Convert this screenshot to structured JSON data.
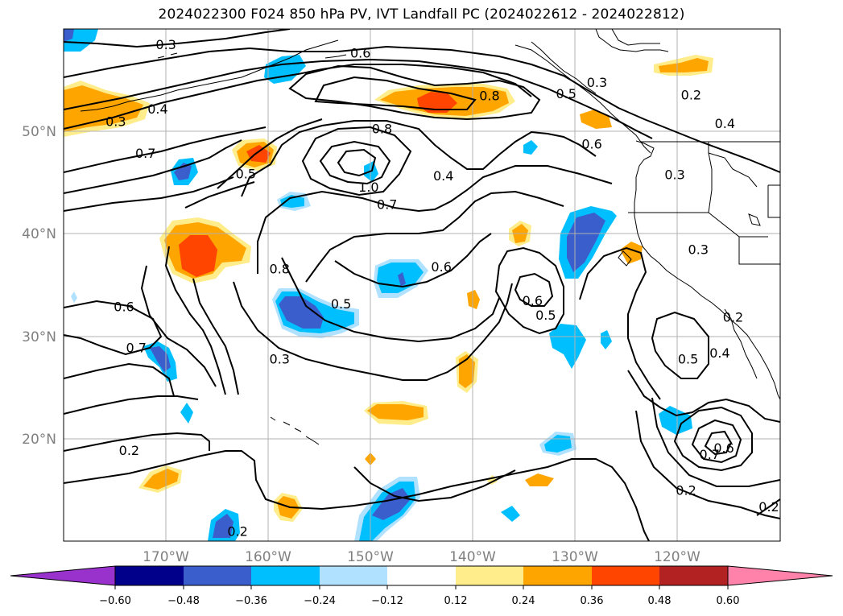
{
  "title": "2024022300 F024 850 hPa PV, IVT Landfall PC (2024022612 - 2024022812)",
  "map": {
    "lon_range": [
      -180,
      -110
    ],
    "lat_range": [
      10,
      60
    ],
    "lon_ticks": [
      "170°W",
      "160°W",
      "150°W",
      "140°W",
      "130°W",
      "120°W"
    ],
    "lat_ticks": [
      "50°N",
      "40°N",
      "30°N",
      "20°N"
    ],
    "grid": true,
    "contour_color": "#000000"
  },
  "contour_labels": [
    {
      "text": "0.3",
      "lon": -170.0,
      "lat": 58.5
    },
    {
      "text": "0.6",
      "lon": -151.0,
      "lat": 57.7
    },
    {
      "text": "0.4",
      "lon": -170.8,
      "lat": 52.2
    },
    {
      "text": "0.3",
      "lon": -174.9,
      "lat": 51.0
    },
    {
      "text": "0.8",
      "lon": -138.4,
      "lat": 53.5
    },
    {
      "text": "0.3",
      "lon": -127.9,
      "lat": 54.8
    },
    {
      "text": "0.5",
      "lon": -130.9,
      "lat": 53.7
    },
    {
      "text": "0.2",
      "lon": -118.7,
      "lat": 53.6
    },
    {
      "text": "0.4",
      "lon": -115.4,
      "lat": 50.8
    },
    {
      "text": "0.8",
      "lon": -148.9,
      "lat": 50.3
    },
    {
      "text": "0.6",
      "lon": -128.4,
      "lat": 48.8
    },
    {
      "text": "0.7",
      "lon": -172.0,
      "lat": 47.9
    },
    {
      "text": "0.5",
      "lon": -162.2,
      "lat": 45.9
    },
    {
      "text": "0.4",
      "lon": -142.9,
      "lat": 45.7
    },
    {
      "text": "0.3",
      "lon": -120.3,
      "lat": 45.8
    },
    {
      "text": "1.0",
      "lon": -150.2,
      "lat": 44.6
    },
    {
      "text": "0.7",
      "lon": -148.4,
      "lat": 42.9
    },
    {
      "text": "0.3",
      "lon": -118.0,
      "lat": 38.5
    },
    {
      "text": "0.8",
      "lon": -158.9,
      "lat": 36.6
    },
    {
      "text": "0.6",
      "lon": -143.1,
      "lat": 36.8
    },
    {
      "text": "0.6",
      "lon": -174.1,
      "lat": 32.9
    },
    {
      "text": "0.5",
      "lon": -152.9,
      "lat": 33.2
    },
    {
      "text": "0.6",
      "lon": -134.2,
      "lat": 33.5
    },
    {
      "text": "0.5",
      "lon": -132.9,
      "lat": 32.1
    },
    {
      "text": "0.2",
      "lon": -114.6,
      "lat": 31.9
    },
    {
      "text": "0.7",
      "lon": -172.9,
      "lat": 28.9
    },
    {
      "text": "0.4",
      "lon": -115.9,
      "lat": 28.4
    },
    {
      "text": "0.5",
      "lon": -119.0,
      "lat": 27.8
    },
    {
      "text": "0.3",
      "lon": -158.9,
      "lat": 27.8
    },
    {
      "text": "0.6",
      "lon": -115.5,
      "lat": 19.1
    },
    {
      "text": "0.7",
      "lon": -116.9,
      "lat": 18.5
    },
    {
      "text": "0.2",
      "lon": -173.6,
      "lat": 18.9
    },
    {
      "text": "0.2",
      "lon": -119.2,
      "lat": 15.0
    },
    {
      "text": "0.2",
      "lon": -111.1,
      "lat": 13.4
    },
    {
      "text": "0.2",
      "lon": -163.0,
      "lat": 11.0
    }
  ],
  "colorbar": {
    "tick_labels": [
      "−0.60",
      "−0.48",
      "−0.36",
      "−0.24",
      "−0.12",
      "0.12",
      "0.24",
      "0.36",
      "0.48",
      "0.60"
    ],
    "colors": [
      "#9932cc",
      "#00008b",
      "#3a5fcd",
      "#00bfff",
      "#b0e2ff",
      "#ffffff",
      "#ffec8b",
      "#ffa500",
      "#ff4500",
      "#b22222",
      "#ff82ab"
    ],
    "extend": "both"
  }
}
